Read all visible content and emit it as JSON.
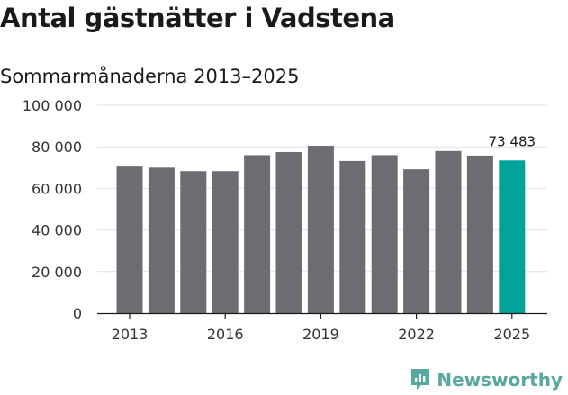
{
  "header": {
    "title": "Antal gästnätter i Vadstena",
    "subtitle": "Sommarmånaderna 2013–2025"
  },
  "brand": {
    "name": "Newsworthy",
    "icon": "newsworthy-logo-icon",
    "color": "#57a99f"
  },
  "chart_data": {
    "type": "bar",
    "title": "Antal gästnätter i Vadstena",
    "subtitle": "Sommarmånaderna 2013–2025",
    "xlabel": "",
    "ylabel": "",
    "categories": [
      "2013",
      "2014",
      "2015",
      "2016",
      "2017",
      "2018",
      "2019",
      "2020",
      "2021",
      "2022",
      "2023",
      "2024",
      "2025"
    ],
    "values": [
      70500,
      70000,
      68300,
      68300,
      76000,
      77500,
      80500,
      73200,
      76000,
      69200,
      78000,
      75800,
      73483
    ],
    "ylim": [
      0,
      100000
    ],
    "yticks": [
      0,
      20000,
      40000,
      60000,
      80000,
      100000
    ],
    "ytick_labels": [
      "0",
      "20 000",
      "40 000",
      "60 000",
      "80 000",
      "100 000"
    ],
    "xtick_labels": [
      "2013",
      "2016",
      "2019",
      "2022",
      "2025"
    ],
    "grid": true,
    "bar_color": "#6d6c72",
    "highlight_color": "#00a39a",
    "highlight_index": 12,
    "annotations": [
      {
        "category": "2025",
        "text": "73 483"
      }
    ]
  }
}
